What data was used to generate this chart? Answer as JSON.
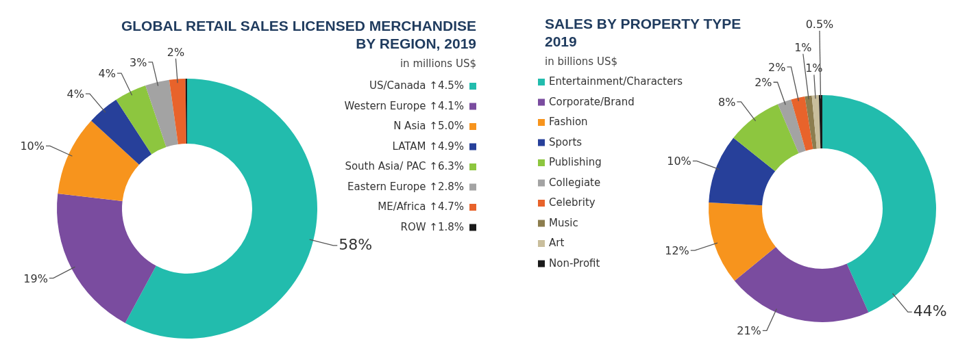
{
  "chart_data": [
    {
      "type": "donut",
      "title": "GLOBAL RETAIL SALES LICENSED MERCHANDISE\nBY REGION, 2019",
      "subtitle": "in millions US$",
      "categories": [
        "US/Canada ↑4.5%",
        "Western Europe ↑4.1%",
        "N Asia ↑5.0%",
        "LATAM ↑4.9%",
        "South Asia/ PAC ↑6.3%",
        "Eastern Europe ↑2.8%",
        "ME/Africa ↑4.7%",
        "ROW ↑1.8%"
      ],
      "values": [
        58,
        19,
        10,
        4,
        4,
        3,
        2,
        0.2
      ],
      "value_labels": [
        "58%",
        "19%",
        "10%",
        "4%",
        "4%",
        "3%",
        "2%",
        null
      ],
      "colors": [
        "#22bcad",
        "#7a4c9f",
        "#f7941d",
        "#27409a",
        "#8dc63f",
        "#a3a3a3",
        "#e8632b",
        "#1a1a1a"
      ],
      "legend": "right"
    },
    {
      "type": "donut",
      "title": "SALES BY PROPERTY TYPE\n2019",
      "subtitle": "in billions US$",
      "categories": [
        "Entertainment/Characters",
        "Corporate/Brand",
        "Fashion",
        "Sports",
        "Publishing",
        "Collegiate",
        "Celebrity",
        "Music",
        "Art",
        "Non-Profit"
      ],
      "values": [
        44,
        21,
        12,
        10,
        8,
        2,
        2,
        1,
        1,
        0.5
      ],
      "value_labels": [
        "44%",
        "21%",
        "12%",
        "10%",
        "8%",
        "2%",
        "2%",
        "1%",
        "1%",
        "0.5%"
      ],
      "colors": [
        "#22bcad",
        "#7a4c9f",
        "#f7941d",
        "#27409a",
        "#8dc63f",
        "#a3a3a3",
        "#e8632b",
        "#8c7d4e",
        "#c9be9c",
        "#1a1a1a"
      ],
      "legend": "left"
    }
  ]
}
